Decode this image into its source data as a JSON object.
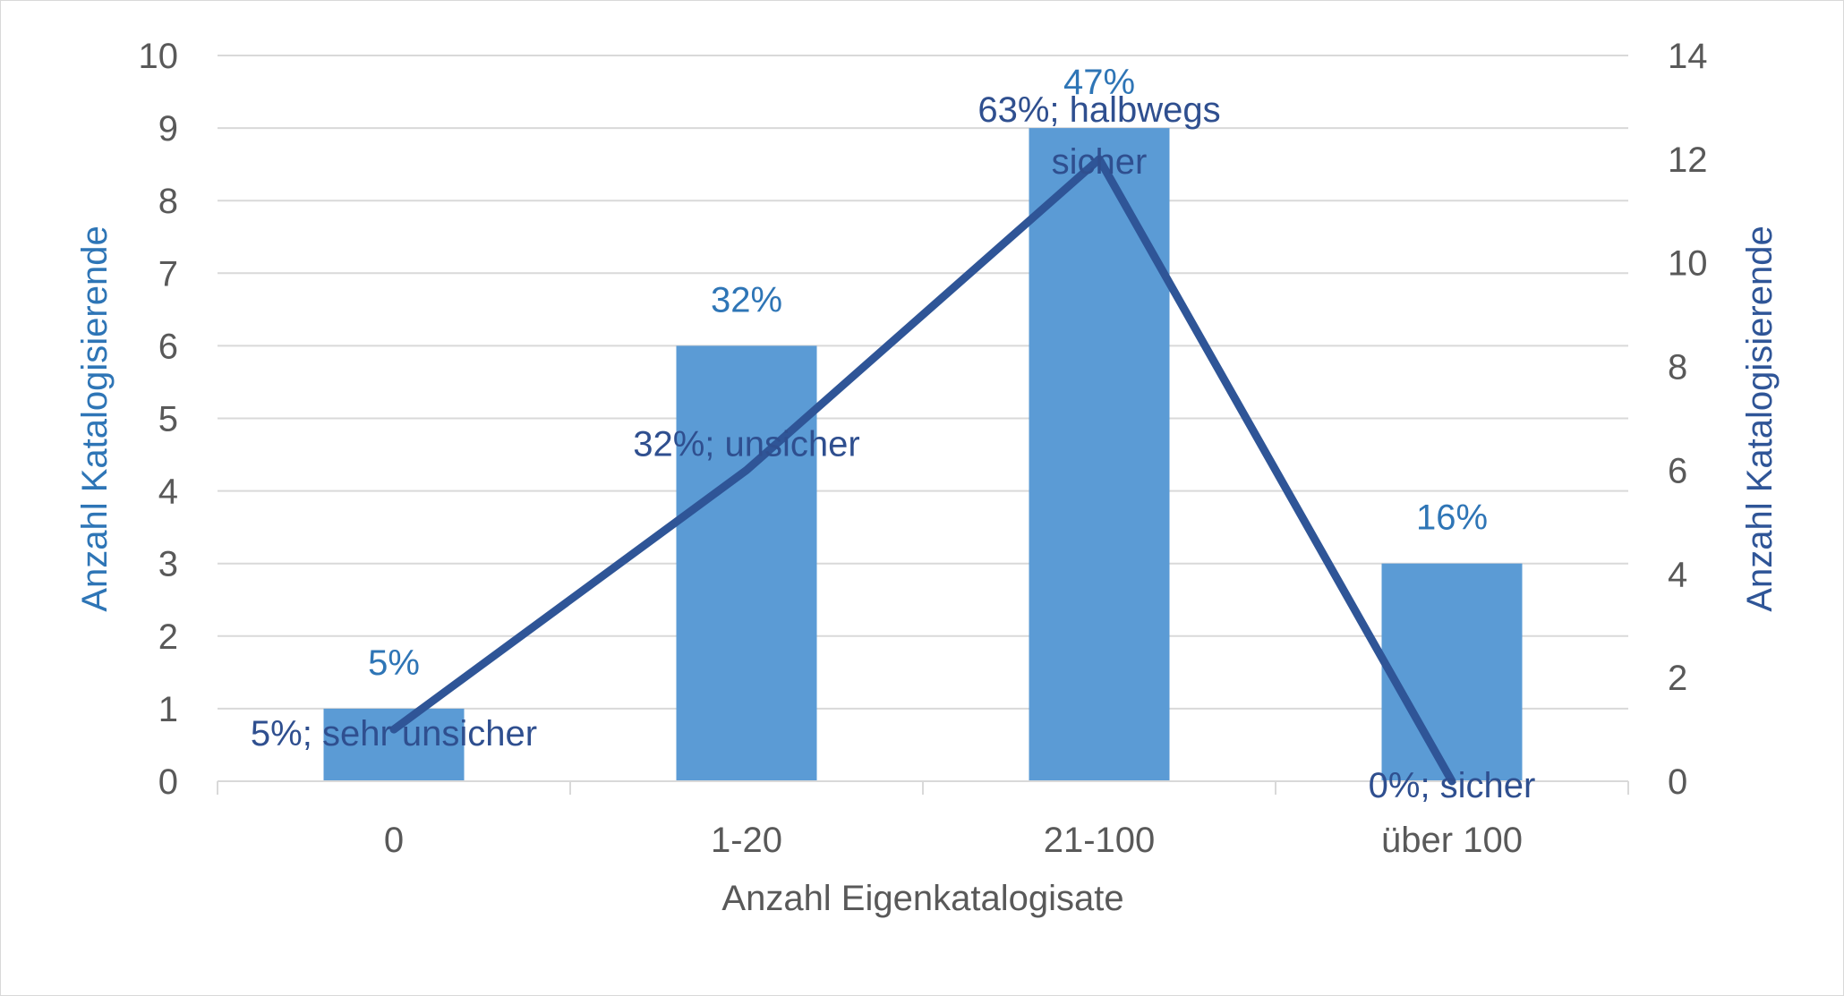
{
  "chart_data": {
    "type": "bar",
    "categories": [
      "0",
      "1-20",
      "21-100",
      "über 100"
    ],
    "xlabel": "Anzahl Eigenkatalogisate",
    "ylabel_left": "Anzahl Katalogisierende",
    "ylabel_right": "Anzahl Katalogisierende",
    "ylim_left": [
      0,
      10
    ],
    "yticks_left": [
      "0",
      "1",
      "2",
      "3",
      "4",
      "5",
      "6",
      "7",
      "8",
      "9",
      "10"
    ],
    "ylim_right": [
      0,
      14
    ],
    "yticks_right": [
      "0",
      "2",
      "4",
      "6",
      "8",
      "10",
      "12",
      "14"
    ],
    "grid": true,
    "series": [
      {
        "type": "bar",
        "axis": "left",
        "color": "#5b9bd5",
        "values": [
          1,
          6,
          9,
          3
        ],
        "data_labels": [
          "5%",
          "32%",
          "47%",
          "16%"
        ]
      },
      {
        "type": "line",
        "axis": "right",
        "color": "#2f5597",
        "values": [
          1,
          6,
          12,
          0
        ],
        "data_labels": [
          "5%; sehr unsicher",
          "32%; unsicher",
          "63%; halbwegs sicher",
          "0%; sicher"
        ]
      }
    ],
    "colors": {
      "bar": "#5b9bd5",
      "line": "#2f5597",
      "bar_label": "#2e75b6",
      "line_label": "#2f4f8f",
      "left_axis_title": "#2e75b6",
      "right_axis_title": "#2f5597",
      "tick": "#595959",
      "grid": "#d9d9d9"
    }
  }
}
